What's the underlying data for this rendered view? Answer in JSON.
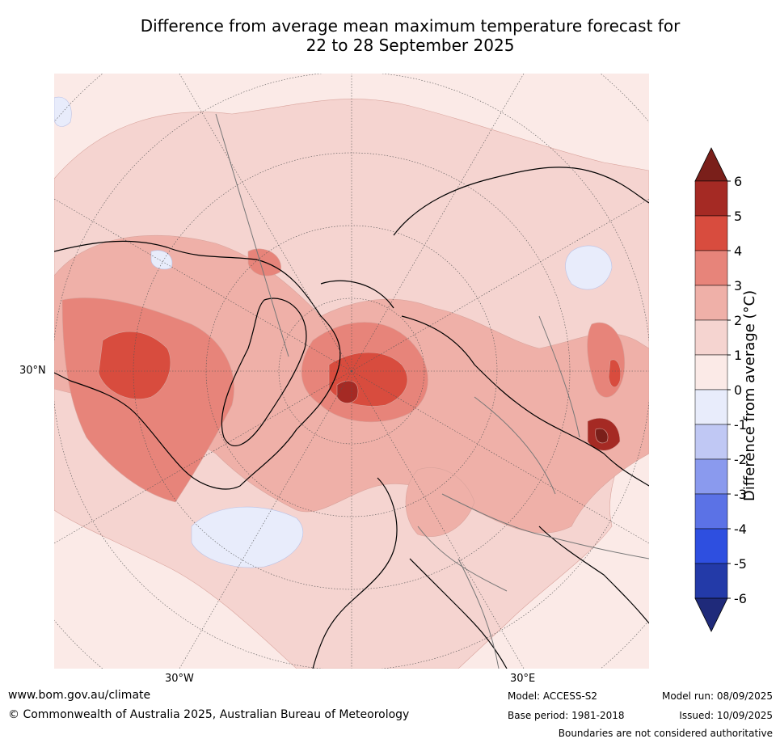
{
  "title_line1": "Difference from average mean maximum temperature forecast for",
  "title_line2": "22 to 28 September 2025",
  "map": {
    "lat_label": "30°N",
    "lon_label_left": "30°W",
    "lon_label_right": "30°E"
  },
  "colorbar": {
    "label": "Difference from average (°C)",
    "ticks": [
      "6",
      "5",
      "4",
      "3",
      "2",
      "1",
      "0",
      "-1",
      "-2",
      "-3",
      "-4",
      "-5",
      "-6"
    ],
    "colors": [
      "#a52a24",
      "#d84c3e",
      "#e7847a",
      "#efb0a8",
      "#f5d4d0",
      "#fbeae7",
      "#e8ecfb",
      "#c0c8f4",
      "#8a9aee",
      "#5b72e6",
      "#2e4fe0",
      "#233aa8"
    ],
    "over_color": "#7a1f1a",
    "under_color": "#1f2a7a"
  },
  "footer": {
    "site": "www.bom.gov.au/climate",
    "copyright": "© Commonwealth of Australia 2025, Australian Bureau of Meteorology",
    "model": "Model: ACCESS-S2",
    "base": "Base period: 1981-2018",
    "model_run": "Model run: 08/09/2025",
    "issued": "Issued: 10/09/2025",
    "boundaries": "Boundaries are not considered authoritative"
  }
}
